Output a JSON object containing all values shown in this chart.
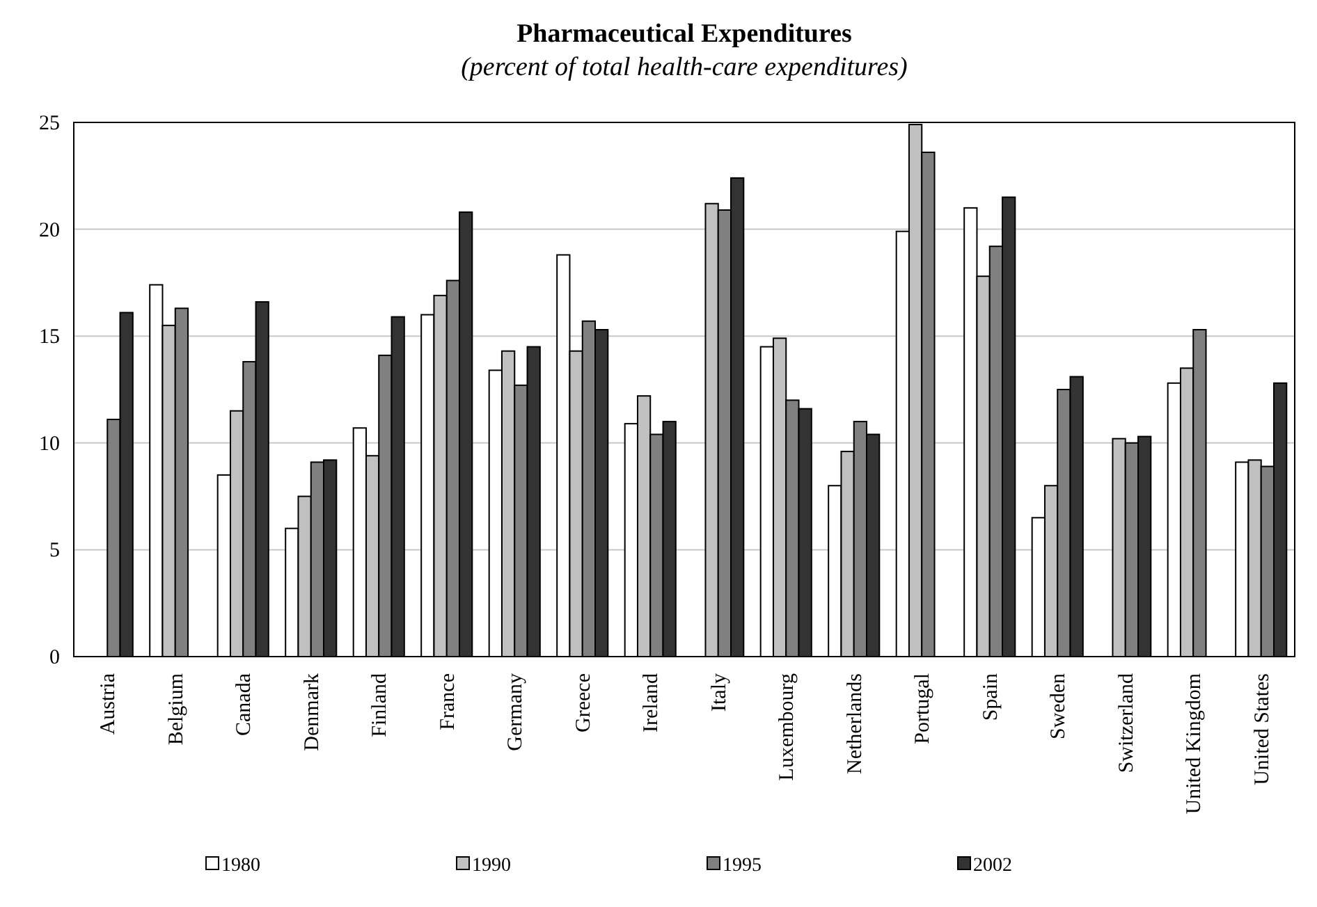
{
  "chart_data": {
    "type": "bar",
    "title": "Pharmaceutical Expenditures",
    "subtitle": "(percent of total health-care expenditures)",
    "categories": [
      "Austria",
      "Belgium",
      "Canada",
      "Denmark",
      "Finland",
      "France",
      "Germany",
      "Greece",
      "Ireland",
      "Italy",
      "Luxembourg",
      "Netherlands",
      "Portugal",
      "Spain",
      "Sweden",
      "Switzerland",
      "United Kingdom",
      "United States"
    ],
    "series": [
      {
        "name": "1980",
        "color": "#ffffff",
        "values": [
          null,
          17.4,
          8.5,
          6.0,
          10.7,
          16.0,
          13.4,
          18.8,
          10.9,
          null,
          14.5,
          8.0,
          19.9,
          21.0,
          6.5,
          null,
          12.8,
          9.1
        ]
      },
      {
        "name": "1990",
        "color": "#c0c0c0",
        "values": [
          null,
          15.5,
          11.5,
          7.5,
          9.4,
          16.9,
          14.3,
          14.3,
          12.2,
          21.2,
          14.9,
          9.6,
          24.9,
          17.8,
          8.0,
          10.2,
          13.5,
          9.2
        ]
      },
      {
        "name": "1995",
        "color": "#808080",
        "values": [
          11.1,
          16.3,
          13.8,
          9.1,
          14.1,
          17.6,
          12.7,
          15.7,
          10.4,
          20.9,
          12.0,
          11.0,
          23.6,
          19.2,
          12.5,
          10.0,
          15.3,
          8.9
        ]
      },
      {
        "name": "2002",
        "color": "#333333",
        "values": [
          16.1,
          null,
          16.6,
          9.2,
          15.9,
          20.8,
          14.5,
          15.3,
          11.0,
          22.4,
          11.6,
          10.4,
          null,
          21.5,
          13.1,
          10.3,
          null,
          12.8
        ]
      }
    ],
    "ylim": [
      0,
      25
    ],
    "yticks": [
      0,
      5,
      10,
      15,
      20,
      25
    ],
    "grid": "y",
    "legend": "bottom"
  }
}
